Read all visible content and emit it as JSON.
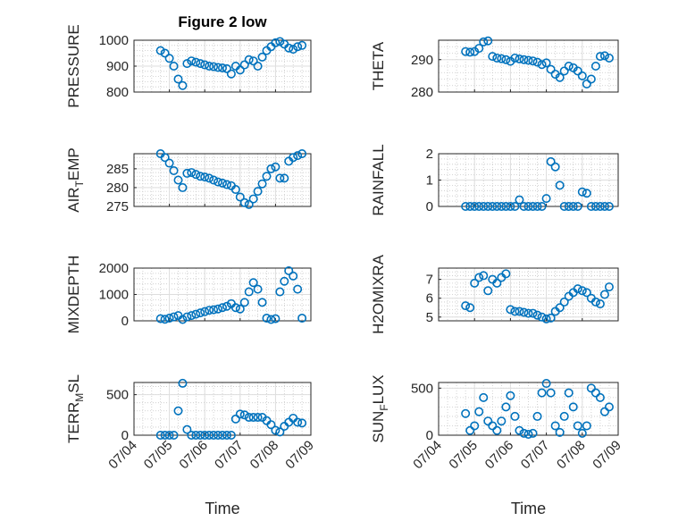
{
  "chart_data": {
    "title": "Figure 2 low",
    "xlabel": "Time",
    "x_ticks": [
      "07/04",
      "07/05",
      "07/06",
      "07/07",
      "07/08",
      "07/09"
    ],
    "marker_color": "#0072BD",
    "panels": [
      {
        "ylabel": "PRESSURE",
        "ylim": [
          800,
          1000
        ],
        "yticks": [
          "800",
          "900",
          "1000"
        ],
        "ytick_values": [
          800,
          900,
          1000
        ],
        "type": "scatter",
        "x": [
          "07/04 18:00",
          "07/04 21:00",
          "07/05 00:00",
          "07/05 03:00",
          "07/05 06:00",
          "07/05 09:00",
          "07/05 12:00",
          "07/05 15:00",
          "07/05 18:00",
          "07/05 21:00",
          "07/06 00:00",
          "07/06 03:00",
          "07/06 06:00",
          "07/06 09:00",
          "07/06 12:00",
          "07/06 15:00",
          "07/06 18:00",
          "07/06 21:00",
          "07/07 00:00",
          "07/07 03:00",
          "07/07 06:00",
          "07/07 09:00",
          "07/07 12:00",
          "07/07 15:00",
          "07/07 18:00",
          "07/07 21:00",
          "07/08 00:00",
          "07/08 03:00",
          "07/08 06:00",
          "07/08 09:00",
          "07/08 12:00",
          "07/08 15:00",
          "07/08 18:00"
        ],
        "y": [
          960,
          950,
          930,
          900,
          850,
          825,
          910,
          920,
          915,
          910,
          905,
          900,
          898,
          895,
          893,
          890,
          870,
          900,
          885,
          905,
          925,
          920,
          900,
          935,
          960,
          975,
          990,
          995,
          985,
          970,
          965,
          975,
          980
        ]
      },
      {
        "ylabel": "THETA",
        "ylim": [
          280,
          296
        ],
        "yticks": [
          "280",
          "290"
        ],
        "ytick_values": [
          280,
          290
        ],
        "type": "scatter",
        "x": [
          "07/04 18:00",
          "07/04 21:00",
          "07/05 00:00",
          "07/05 03:00",
          "07/05 06:00",
          "07/05 09:00",
          "07/05 12:00",
          "07/05 15:00",
          "07/05 18:00",
          "07/05 21:00",
          "07/06 00:00",
          "07/06 03:00",
          "07/06 06:00",
          "07/06 09:00",
          "07/06 12:00",
          "07/06 15:00",
          "07/06 18:00",
          "07/06 21:00",
          "07/07 00:00",
          "07/07 03:00",
          "07/07 06:00",
          "07/07 09:00",
          "07/07 12:00",
          "07/07 15:00",
          "07/07 18:00",
          "07/07 21:00",
          "07/08 00:00",
          "07/08 03:00",
          "07/08 06:00",
          "07/08 09:00",
          "07/08 12:00",
          "07/08 15:00",
          "07/08 18:00"
        ],
        "y": [
          292.5,
          292.3,
          292.5,
          293.5,
          295.5,
          295.8,
          291,
          290.5,
          290.3,
          290.0,
          289.5,
          290.5,
          290.2,
          290.0,
          289.8,
          289.6,
          289.2,
          288.5,
          289,
          287,
          285.5,
          284.5,
          286.5,
          288.0,
          287.5,
          286.5,
          285,
          282.5,
          284,
          288,
          291,
          291.2,
          290.5
        ]
      },
      {
        "ylabel": "AIR_TEMP",
        "ylim": [
          275,
          289
        ],
        "yticks": [
          "275",
          "280",
          "285"
        ],
        "ytick_values": [
          275,
          280,
          285
        ],
        "type": "scatter",
        "x": [
          "07/04 18:00",
          "07/04 21:00",
          "07/05 00:00",
          "07/05 03:00",
          "07/05 06:00",
          "07/05 09:00",
          "07/05 12:00",
          "07/05 15:00",
          "07/05 18:00",
          "07/05 21:00",
          "07/06 00:00",
          "07/06 03:00",
          "07/06 06:00",
          "07/06 09:00",
          "07/06 12:00",
          "07/06 15:00",
          "07/06 18:00",
          "07/06 21:00",
          "07/07 00:00",
          "07/07 03:00",
          "07/07 06:00",
          "07/07 09:00",
          "07/07 12:00",
          "07/07 15:00",
          "07/07 18:00",
          "07/07 21:00",
          "07/08 00:00",
          "07/08 03:00",
          "07/08 06:00",
          "07/08 09:00",
          "07/08 12:00",
          "07/08 15:00",
          "07/08 18:00"
        ],
        "y": [
          289,
          288,
          286.5,
          284.5,
          282,
          280,
          283.8,
          284,
          283.5,
          283.0,
          282.8,
          282.5,
          282,
          281.5,
          281.2,
          280.8,
          280.5,
          279.5,
          277.5,
          276,
          275.5,
          277,
          279,
          281,
          283,
          285,
          285.5,
          282.5,
          282.5,
          287,
          288,
          288.5,
          289
        ]
      },
      {
        "ylabel": "RAINFALL",
        "ylim": [
          0,
          2
        ],
        "yticks": [
          "0",
          "1",
          "2"
        ],
        "ytick_values": [
          0,
          1,
          2
        ],
        "type": "scatter",
        "x": [
          "07/04 18:00",
          "07/04 21:00",
          "07/05 00:00",
          "07/05 03:00",
          "07/05 06:00",
          "07/05 09:00",
          "07/05 12:00",
          "07/05 15:00",
          "07/05 18:00",
          "07/05 21:00",
          "07/06 00:00",
          "07/06 03:00",
          "07/06 06:00",
          "07/06 09:00",
          "07/06 12:00",
          "07/06 15:00",
          "07/06 18:00",
          "07/06 21:00",
          "07/07 00:00",
          "07/07 03:00",
          "07/07 06:00",
          "07/07 09:00",
          "07/07 12:00",
          "07/07 15:00",
          "07/07 18:00",
          "07/07 21:00",
          "07/08 00:00",
          "07/08 03:00",
          "07/08 06:00",
          "07/08 09:00",
          "07/08 12:00",
          "07/08 15:00",
          "07/08 18:00"
        ],
        "y": [
          0,
          0,
          0,
          0,
          0,
          0,
          0,
          0,
          0,
          0,
          0,
          0,
          0.25,
          0,
          0,
          0,
          0,
          0,
          0.3,
          1.7,
          1.5,
          0.8,
          0,
          0,
          0,
          0,
          0.55,
          0.5,
          0,
          0,
          0,
          0,
          0
        ]
      },
      {
        "ylabel": "MIXDEPTH",
        "ylim": [
          0,
          2000
        ],
        "yticks": [
          "0",
          "1000",
          "2000"
        ],
        "ytick_values": [
          0,
          1000,
          2000
        ],
        "type": "scatter",
        "x": [
          "07/04 18:00",
          "07/04 21:00",
          "07/05 00:00",
          "07/05 03:00",
          "07/05 06:00",
          "07/05 09:00",
          "07/05 12:00",
          "07/05 15:00",
          "07/05 18:00",
          "07/05 21:00",
          "07/06 00:00",
          "07/06 03:00",
          "07/06 06:00",
          "07/06 09:00",
          "07/06 12:00",
          "07/06 15:00",
          "07/06 18:00",
          "07/06 21:00",
          "07/07 00:00",
          "07/07 03:00",
          "07/07 06:00",
          "07/07 09:00",
          "07/07 12:00",
          "07/07 15:00",
          "07/07 18:00",
          "07/07 21:00",
          "07/08 00:00",
          "07/08 03:00",
          "07/08 06:00",
          "07/08 09:00",
          "07/08 12:00",
          "07/08 15:00",
          "07/08 18:00"
        ],
        "y": [
          80,
          60,
          100,
          150,
          200,
          50,
          150,
          200,
          250,
          300,
          350,
          400,
          420,
          450,
          500,
          550,
          650,
          500,
          450,
          700,
          1100,
          1450,
          1200,
          700,
          100,
          50,
          80,
          1100,
          1500,
          1900,
          1700,
          1200,
          100
        ]
      },
      {
        "ylabel": "H2OMIXRA",
        "ylim": [
          4.8,
          7.6
        ],
        "yticks": [
          "5",
          "6",
          "7"
        ],
        "ytick_values": [
          5,
          6,
          7
        ],
        "type": "scatter",
        "x": [
          "07/04 18:00",
          "07/04 21:00",
          "07/05 00:00",
          "07/05 03:00",
          "07/05 06:00",
          "07/05 09:00",
          "07/05 12:00",
          "07/05 15:00",
          "07/05 18:00",
          "07/05 21:00",
          "07/06 00:00",
          "07/06 03:00",
          "07/06 06:00",
          "07/06 09:00",
          "07/06 12:00",
          "07/06 15:00",
          "07/06 18:00",
          "07/06 21:00",
          "07/07 00:00",
          "07/07 03:00",
          "07/07 06:00",
          "07/07 09:00",
          "07/07 12:00",
          "07/07 15:00",
          "07/07 18:00",
          "07/07 21:00",
          "07/08 00:00",
          "07/08 03:00",
          "07/08 06:00",
          "07/08 09:00",
          "07/08 12:00",
          "07/08 15:00",
          "07/08 18:00"
        ],
        "y": [
          5.6,
          5.5,
          6.8,
          7.1,
          7.2,
          6.4,
          7.0,
          6.8,
          7.1,
          7.3,
          5.4,
          5.3,
          5.3,
          5.25,
          5.2,
          5.2,
          5.1,
          5.0,
          4.9,
          4.95,
          5.3,
          5.5,
          5.8,
          6.1,
          6.3,
          6.5,
          6.4,
          6.3,
          6.0,
          5.8,
          5.7,
          6.2,
          6.6
        ]
      },
      {
        "ylabel": "TERR_MSL",
        "ylim": [
          0,
          650
        ],
        "yticks": [
          "0",
          "500"
        ],
        "ytick_values": [
          0,
          500
        ],
        "type": "scatter",
        "x": [
          "07/04 18:00",
          "07/04 21:00",
          "07/05 00:00",
          "07/05 03:00",
          "07/05 06:00",
          "07/05 09:00",
          "07/05 12:00",
          "07/05 15:00",
          "07/05 18:00",
          "07/05 21:00",
          "07/06 00:00",
          "07/06 03:00",
          "07/06 06:00",
          "07/06 09:00",
          "07/06 12:00",
          "07/06 15:00",
          "07/06 18:00",
          "07/06 21:00",
          "07/07 00:00",
          "07/07 03:00",
          "07/07 06:00",
          "07/07 09:00",
          "07/07 12:00",
          "07/07 15:00",
          "07/07 18:00",
          "07/07 21:00",
          "07/08 00:00",
          "07/08 03:00",
          "07/08 06:00",
          "07/08 09:00",
          "07/08 12:00",
          "07/08 15:00",
          "07/08 18:00"
        ],
        "y": [
          0,
          0,
          0,
          0,
          300,
          640,
          70,
          0,
          0,
          0,
          0,
          0,
          0,
          0,
          0,
          0,
          0,
          200,
          260,
          250,
          220,
          220,
          220,
          220,
          180,
          130,
          60,
          40,
          110,
          160,
          210,
          160,
          150
        ]
      },
      {
        "ylabel": "SUN_FLUX",
        "ylim": [
          0,
          560
        ],
        "yticks": [
          "0",
          "500"
        ],
        "ytick_values": [
          0,
          500
        ],
        "type": "scatter",
        "x": [
          "07/04 18:00",
          "07/04 21:00",
          "07/05 00:00",
          "07/05 03:00",
          "07/05 06:00",
          "07/05 09:00",
          "07/05 12:00",
          "07/05 15:00",
          "07/05 18:00",
          "07/05 21:00",
          "07/06 00:00",
          "07/06 03:00",
          "07/06 06:00",
          "07/06 09:00",
          "07/06 12:00",
          "07/06 15:00",
          "07/06 18:00",
          "07/06 21:00",
          "07/07 00:00",
          "07/07 03:00",
          "07/07 06:00",
          "07/07 09:00",
          "07/07 12:00",
          "07/07 15:00",
          "07/07 18:00",
          "07/07 21:00",
          "07/08 00:00",
          "07/08 03:00",
          "07/08 06:00",
          "07/08 09:00",
          "07/08 12:00",
          "07/08 15:00",
          "07/08 18:00"
        ],
        "y": [
          230,
          50,
          100,
          250,
          400,
          150,
          100,
          50,
          150,
          300,
          420,
          200,
          50,
          20,
          10,
          20,
          200,
          450,
          550,
          450,
          100,
          30,
          200,
          450,
          300,
          100,
          20,
          100,
          500,
          450,
          400,
          250,
          300
        ]
      }
    ]
  }
}
